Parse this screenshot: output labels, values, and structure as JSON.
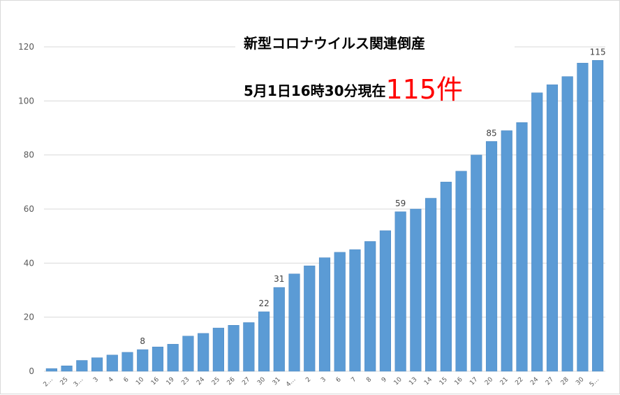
{
  "chart_data": {
    "type": "bar",
    "title_line1": "新型コロナウイルス関連倒産",
    "title_line2_prefix": "5月1日16時30分現在",
    "title_line2_count": "115件",
    "bar_color": "#5b9bd5",
    "grid_color": "#d9d9d9",
    "ylim": [
      0,
      120
    ],
    "yticks": [
      0,
      20,
      40,
      60,
      80,
      100,
      120
    ],
    "categories": [
      "2…",
      "25",
      "3…",
      "3",
      "4",
      "6",
      "10",
      "16",
      "19",
      "23",
      "24",
      "25",
      "26",
      "27",
      "30",
      "31",
      "4…",
      "2",
      "3",
      "6",
      "7",
      "8",
      "9",
      "10",
      "13",
      "14",
      "15",
      "16",
      "17",
      "20",
      "21",
      "22",
      "24",
      "27",
      "28",
      "30",
      "5…"
    ],
    "values": [
      1,
      2,
      4,
      5,
      6,
      7,
      8,
      9,
      10,
      13,
      14,
      16,
      17,
      18,
      22,
      31,
      36,
      39,
      42,
      44,
      45,
      48,
      52,
      59,
      60,
      64,
      70,
      74,
      80,
      85,
      89,
      92,
      103,
      106,
      109,
      114,
      115
    ],
    "data_labels": [
      {
        "index": 6,
        "text": "8"
      },
      {
        "index": 14,
        "text": "22"
      },
      {
        "index": 15,
        "text": "31"
      },
      {
        "index": 23,
        "text": "59"
      },
      {
        "index": 29,
        "text": "85"
      },
      {
        "index": 36,
        "text": "115"
      }
    ]
  }
}
